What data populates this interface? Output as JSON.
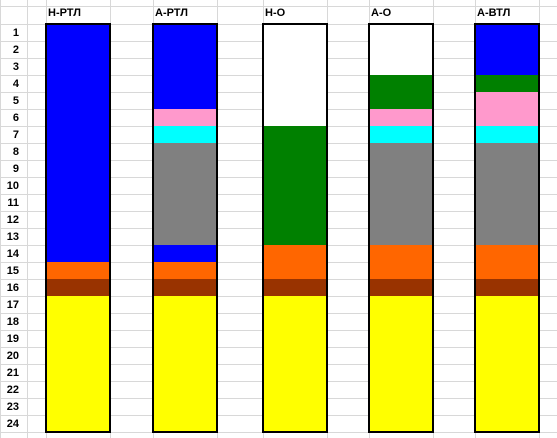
{
  "chart_data": {
    "type": "bar",
    "orientation": "vertical-stacked",
    "categories": [
      "Н-РТЛ",
      "А-РТЛ",
      "Н-О",
      "А-О",
      "А-ВТЛ"
    ],
    "row_labels": [
      "1",
      "2",
      "3",
      "4",
      "5",
      "6",
      "7",
      "8",
      "9",
      "10",
      "11",
      "12",
      "13",
      "14",
      "15",
      "16",
      "17",
      "18",
      "19",
      "20",
      "21",
      "22",
      "23",
      "24"
    ],
    "grid": true,
    "bars": [
      {
        "label": "Н-РТЛ",
        "segments": [
          {
            "start": 1,
            "end": 14,
            "color": "#0000ff"
          },
          {
            "start": 15,
            "end": 15,
            "color": "#ff6600"
          },
          {
            "start": 16,
            "end": 16,
            "color": "#993300"
          },
          {
            "start": 17,
            "end": 24,
            "color": "#ffff00"
          }
        ]
      },
      {
        "label": "А-РТЛ",
        "segments": [
          {
            "start": 1,
            "end": 5,
            "color": "#0000ff"
          },
          {
            "start": 6,
            "end": 6,
            "color": "#ff99cc"
          },
          {
            "start": 7,
            "end": 7,
            "color": "#00ffff"
          },
          {
            "start": 8,
            "end": 13,
            "color": "#808080"
          },
          {
            "start": 14,
            "end": 14,
            "color": "#0000ff"
          },
          {
            "start": 15,
            "end": 15,
            "color": "#ff6600"
          },
          {
            "start": 16,
            "end": 16,
            "color": "#993300"
          },
          {
            "start": 17,
            "end": 24,
            "color": "#ffff00"
          }
        ]
      },
      {
        "label": "Н-О",
        "segments": [
          {
            "start": 1,
            "end": 6,
            "color": "#ffffff"
          },
          {
            "start": 7,
            "end": 13,
            "color": "#008000"
          },
          {
            "start": 14,
            "end": 15,
            "color": "#ff6600"
          },
          {
            "start": 16,
            "end": 16,
            "color": "#993300"
          },
          {
            "start": 17,
            "end": 24,
            "color": "#ffff00"
          }
        ]
      },
      {
        "label": "А-О",
        "segments": [
          {
            "start": 1,
            "end": 3,
            "color": "#ffffff"
          },
          {
            "start": 4,
            "end": 5,
            "color": "#008000"
          },
          {
            "start": 6,
            "end": 6,
            "color": "#ff99cc"
          },
          {
            "start": 7,
            "end": 7,
            "color": "#00ffff"
          },
          {
            "start": 8,
            "end": 13,
            "color": "#808080"
          },
          {
            "start": 14,
            "end": 15,
            "color": "#ff6600"
          },
          {
            "start": 16,
            "end": 16,
            "color": "#993300"
          },
          {
            "start": 17,
            "end": 24,
            "color": "#ffff00"
          }
        ]
      },
      {
        "label": "А-ВТЛ",
        "segments": [
          {
            "start": 1,
            "end": 3,
            "color": "#0000ff"
          },
          {
            "start": 4,
            "end": 4,
            "color": "#008000"
          },
          {
            "start": 5,
            "end": 6,
            "color": "#ff99cc"
          },
          {
            "start": 7,
            "end": 7,
            "color": "#00ffff"
          },
          {
            "start": 8,
            "end": 13,
            "color": "#808080"
          },
          {
            "start": 14,
            "end": 15,
            "color": "#ff6600"
          },
          {
            "start": 16,
            "end": 16,
            "color": "#993300"
          },
          {
            "start": 17,
            "end": 24,
            "color": "#ffff00"
          }
        ]
      }
    ]
  }
}
